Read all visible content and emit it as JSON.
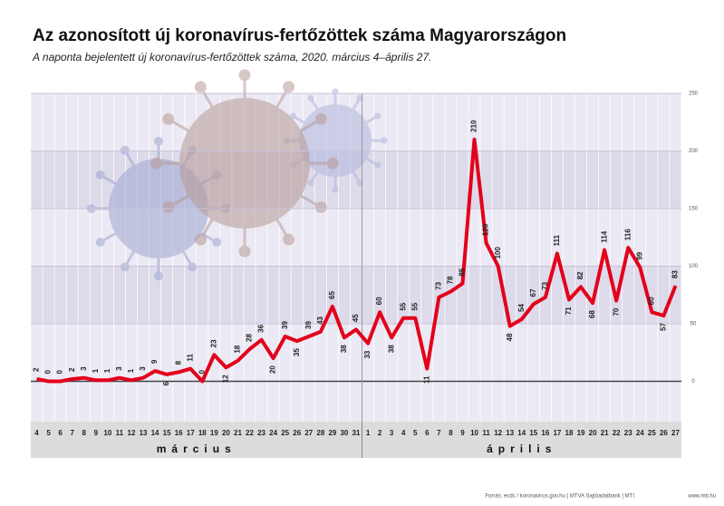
{
  "chart_data": {
    "type": "line",
    "title": "Az azonosított új koronavírus-fertőzöttek száma Magyarországon",
    "subtitle": "A naponta bejelentett új koronavírus-fertőzöttek száma, 2020. március 4–április 27.",
    "categories": [
      "4",
      "5",
      "6",
      "7",
      "8",
      "9",
      "10",
      "11",
      "12",
      "13",
      "14",
      "15",
      "16",
      "17",
      "18",
      "19",
      "20",
      "21",
      "22",
      "23",
      "24",
      "25",
      "26",
      "27",
      "28",
      "29",
      "30",
      "31",
      "1",
      "2",
      "3",
      "4",
      "5",
      "6",
      "7",
      "8",
      "9",
      "10",
      "11",
      "12",
      "13",
      "14",
      "15",
      "16",
      "17",
      "18",
      "19",
      "20",
      "21",
      "22",
      "23",
      "24",
      "25",
      "26",
      "27"
    ],
    "values": [
      2,
      0,
      0,
      2,
      3,
      1,
      1,
      3,
      1,
      3,
      9,
      6,
      8,
      11,
      0,
      23,
      12,
      18,
      28,
      36,
      20,
      39,
      35,
      39,
      43,
      65,
      38,
      45,
      33,
      60,
      38,
      55,
      55,
      11,
      73,
      78,
      85,
      210,
      120,
      100,
      48,
      54,
      67,
      73,
      111,
      71,
      82,
      68,
      114,
      70,
      116,
      99,
      60,
      57,
      83
    ],
    "color": "#e3001b",
    "month_labels": [
      "március",
      "április"
    ],
    "ylim": [
      -35,
      250
    ],
    "yticks": [
      0,
      50,
      100,
      150,
      200,
      250
    ],
    "grid": true,
    "source": "Forrás: ecdc / koronavirus.gov.hu | MTVA Sajtóadatbank | MTI",
    "site": "www.mti.hu"
  }
}
